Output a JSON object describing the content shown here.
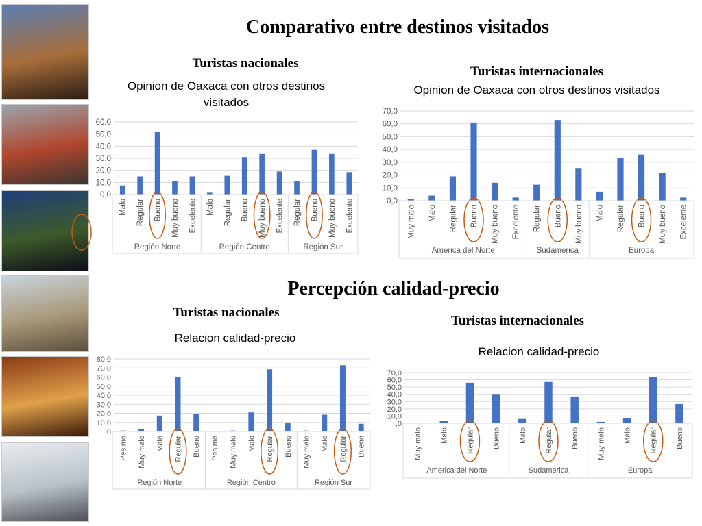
{
  "page": {
    "title_1": "Comparativo entre destinos visitados",
    "title_2": "Percepción calidad-precio",
    "nat_label_1": "Turistas nacionales",
    "int_label_1": "Turistas internacionales",
    "nat_label_2": "Turistas nacionales",
    "int_label_2": "Turistas internacionales"
  },
  "colors": {
    "bar": "#4472C4",
    "circle": "#C55A11",
    "grid": "#d9d9d9",
    "axis_text": "#595959"
  },
  "photos": [
    {
      "name": "photo-oaxaca-terrace",
      "colors": [
        "#5b7fb5",
        "#a86e3a",
        "#2b1d14"
      ]
    },
    {
      "name": "photo-street-crowd",
      "colors": [
        "#9aa5ad",
        "#b0462e",
        "#3d3530"
      ]
    },
    {
      "name": "photo-night-courtyard",
      "colors": [
        "#1e3f7a",
        "#3d5a2a",
        "#0e0e18"
      ]
    },
    {
      "name": "photo-church-plaza",
      "colors": [
        "#c9d4dc",
        "#a89878",
        "#5a4e3c"
      ]
    },
    {
      "name": "photo-hotel-room",
      "colors": [
        "#8a3a16",
        "#e0a04a",
        "#3a1a0c"
      ]
    },
    {
      "name": "photo-airport-crowd",
      "colors": [
        "#e8ecef",
        "#b9c2c8",
        "#4d4d55"
      ]
    }
  ],
  "chart_data": [
    {
      "id": "chart-opinion-nacionales",
      "type": "bar",
      "title": "Opinion de Oaxaca con otros destinos visitados",
      "ylim": [
        0,
        60
      ],
      "yticks": [
        "0,0",
        "10,0",
        "20,0",
        "30,0",
        "40,0",
        "50,0",
        "60,0"
      ],
      "groups": [
        {
          "name": "Región Norte",
          "categories": [
            "Malo",
            "Regular",
            "Bueno",
            "Muy bueno",
            "Excelente"
          ],
          "values": [
            7.5,
            15,
            52,
            11,
            15
          ],
          "circled": [
            2
          ]
        },
        {
          "name": "Región Centro",
          "categories": [
            "Malo",
            "Regular",
            "Bueno",
            "Muy bueno",
            "Excelente"
          ],
          "values": [
            1.5,
            15.5,
            31,
            33.5,
            19
          ],
          "circled": [
            3
          ]
        },
        {
          "name": "Región Sur",
          "categories": [
            "Regular",
            "Bueno",
            "Muy bueno",
            "Excelente"
          ],
          "values": [
            11,
            37,
            33.5,
            18.5
          ],
          "circled": [
            1
          ]
        }
      ]
    },
    {
      "id": "chart-opinion-internacionales",
      "type": "bar",
      "title": "Opinion de Oaxaca con otros destinos visitados",
      "ylim": [
        0,
        70
      ],
      "yticks": [
        "0,0",
        "10,0",
        "20,0",
        "30,0",
        "40,0",
        "50,0",
        "60,0",
        "70,0"
      ],
      "groups": [
        {
          "name": "America del Norte",
          "categories": [
            "Muy malo",
            "Malo",
            "Regular",
            "Bueno",
            "Muy bueno",
            "Excelente"
          ],
          "values": [
            1.5,
            4,
            19,
            61,
            14,
            2.5
          ],
          "circled": [
            3
          ]
        },
        {
          "name": "Sudamerica",
          "categories": [
            "Regular",
            "Bueno",
            "Muy bueno"
          ],
          "values": [
            12.5,
            63,
            25
          ],
          "circled": [
            1
          ]
        },
        {
          "name": "Europa",
          "categories": [
            "Malo",
            "Regular",
            "Bueno",
            "Muy bueno",
            "Excelente"
          ],
          "values": [
            7,
            33.5,
            36,
            21.5,
            2.5
          ],
          "circled": [
            2
          ]
        }
      ]
    },
    {
      "id": "chart-calidad-nacionales",
      "type": "bar",
      "title": "Relacion calidad-precio",
      "ylim": [
        0,
        80
      ],
      "yticks": [
        ",0",
        "10,0",
        "20,0",
        "30,0",
        "40,0",
        "50,0",
        "60,0",
        "70,0",
        "80,0"
      ],
      "groups": [
        {
          "name": "Región Norte",
          "categories": [
            "Pésimo",
            "Muy malo",
            "Malo",
            "Regular",
            "Bueno"
          ],
          "values": [
            1,
            3,
            17.5,
            60,
            19.5
          ],
          "circled": [
            3
          ]
        },
        {
          "name": "Región Centro",
          "categories": [
            "Pésimo",
            "Muy malo",
            "Malo",
            "Regular",
            "Bueno"
          ],
          "values": [
            0,
            1,
            21,
            68.5,
            9.5
          ],
          "circled": [
            3
          ]
        },
        {
          "name": "Región Sur",
          "categories": [
            "Muy malo",
            "Malo",
            "Regular",
            "Bueno"
          ],
          "values": [
            1,
            18.5,
            73,
            8.5
          ],
          "circled": [
            2
          ]
        }
      ]
    },
    {
      "id": "chart-calidad-internacionales",
      "type": "bar",
      "title": "Relacion calidad-precio",
      "ylim": [
        0,
        70
      ],
      "yticks": [
        ",0",
        "10,0",
        "20,0",
        "30,0",
        "40,0",
        "50,0",
        "60,0",
        "70,0"
      ],
      "groups": [
        {
          "name": "America del Norte",
          "categories": [
            "Muy malo",
            "Malo",
            "Regular",
            "Bueno"
          ],
          "values": [
            0,
            3.5,
            56,
            40.5
          ],
          "circled": [
            2
          ]
        },
        {
          "name": "Sudamerica",
          "categories": [
            "Malo",
            "Regular",
            "Bueno"
          ],
          "values": [
            6,
            57,
            37
          ],
          "circled": [
            1
          ]
        },
        {
          "name": "Europa",
          "categories": [
            "Muy malo",
            "Malo",
            "Regular",
            "Bueno"
          ],
          "values": [
            2,
            7,
            64,
            26.5
          ],
          "circled": [
            2
          ]
        }
      ]
    }
  ]
}
